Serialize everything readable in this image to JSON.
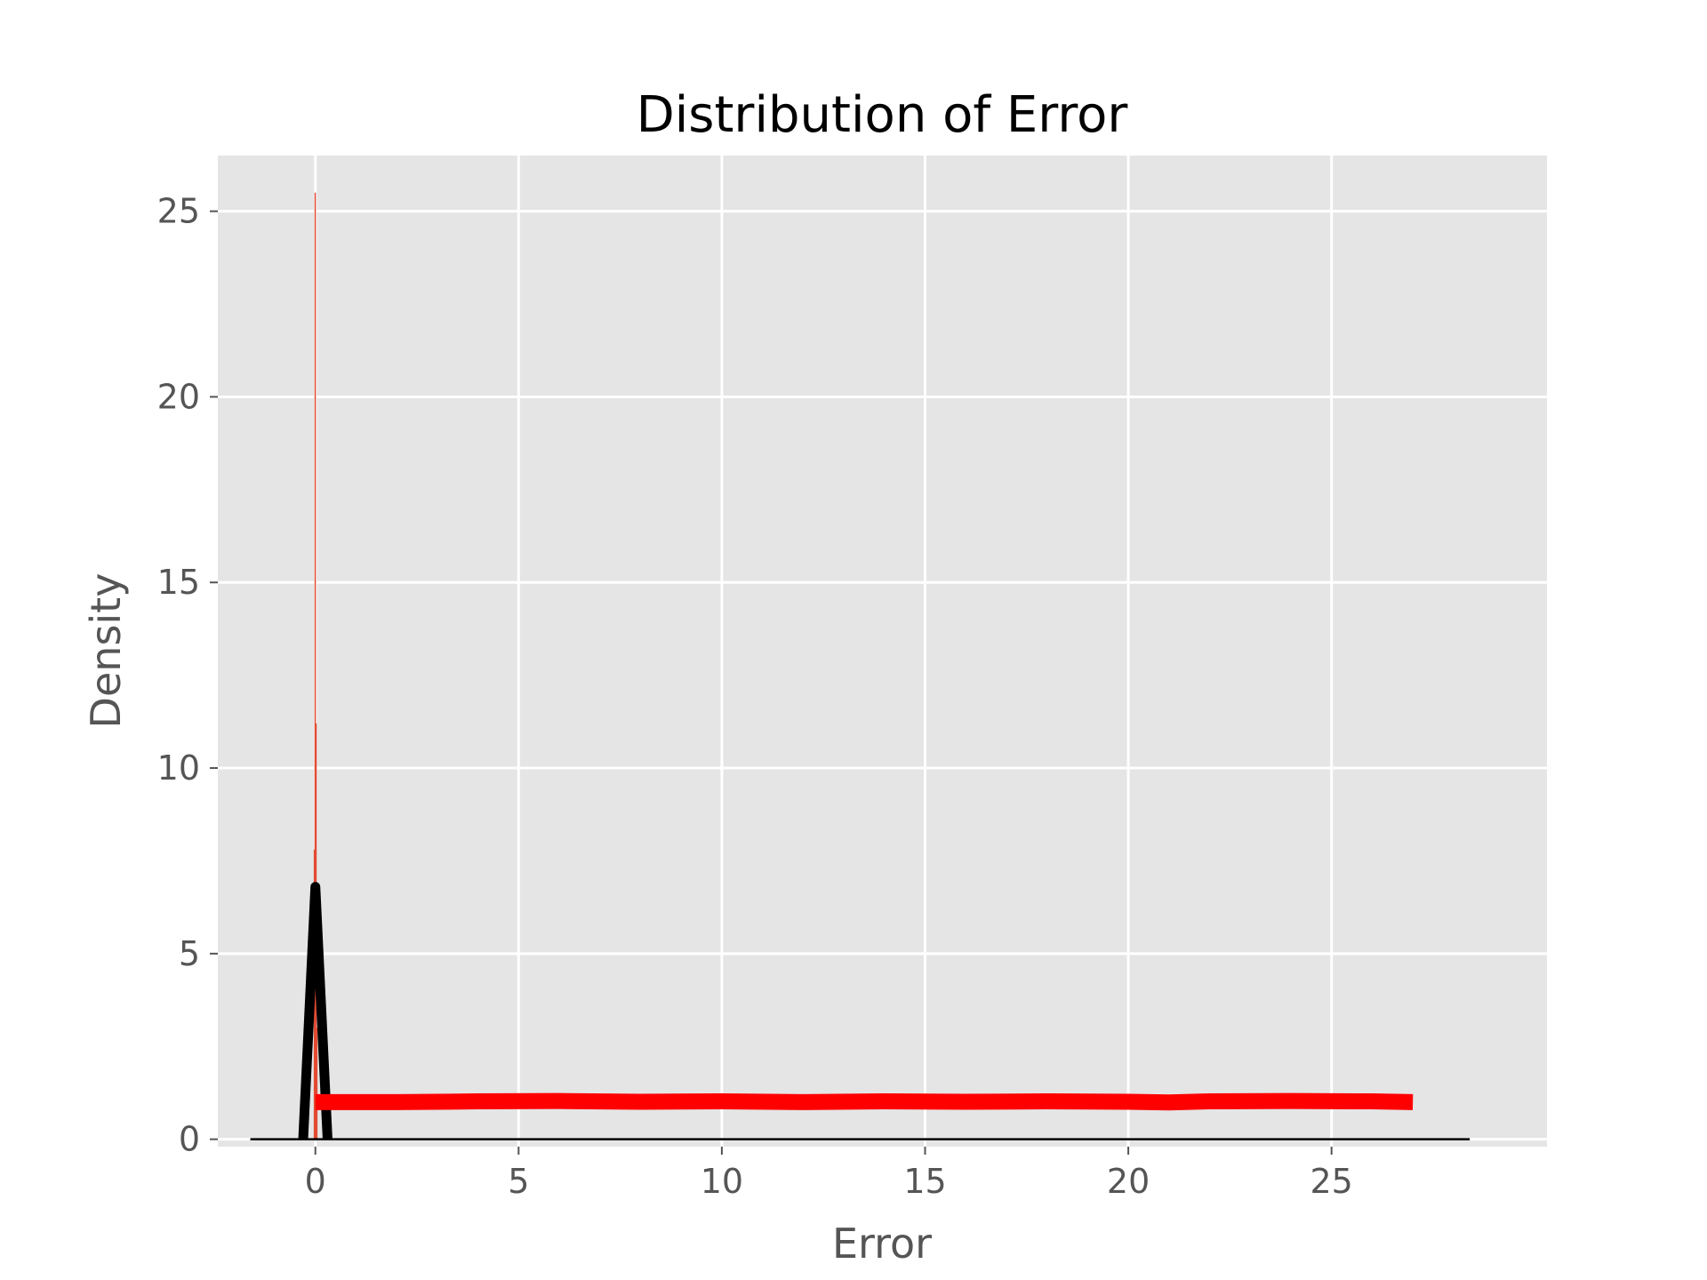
{
  "chart_data": {
    "type": "histogram",
    "title": "Distribution of Error",
    "xlabel": "Error",
    "ylabel": "Density",
    "xlim": [
      -2.4,
      30.3
    ],
    "ylim": [
      -0.2,
      26.5
    ],
    "xticks": [
      0,
      5,
      10,
      15,
      20,
      25
    ],
    "yticks": [
      0,
      5,
      10,
      15,
      20,
      25
    ],
    "grid": true,
    "background_color": "#e5e5e5",
    "grid_color": "#ffffff",
    "histogram": {
      "color": "#e24a33",
      "bars": [
        {
          "x": -0.04,
          "width": 0.015,
          "value": 7.8
        },
        {
          "x": -0.02,
          "width": 0.015,
          "value": 25.5
        },
        {
          "x": 0.0,
          "width": 0.015,
          "value": 11.2
        },
        {
          "x": 0.02,
          "width": 0.015,
          "value": 3.0
        }
      ]
    },
    "series": [
      {
        "color": "#000000",
        "style": "thick-line",
        "x": [
          -0.3,
          0.0,
          0.3
        ],
        "y": [
          0,
          6.8,
          0
        ]
      },
      {
        "color": "#ff0000",
        "style": "thick-band",
        "x": [
          0,
          2,
          4,
          6,
          8,
          10,
          12,
          14,
          16,
          18,
          20,
          21,
          22,
          24,
          26,
          27
        ],
        "y": [
          1.0,
          1.0,
          1.02,
          1.03,
          1.01,
          1.02,
          1.0,
          1.02,
          1.01,
          1.02,
          1.01,
          0.99,
          1.02,
          1.03,
          1.02,
          1.0
        ]
      },
      {
        "color": "#000000",
        "style": "baseline",
        "x": [
          -1.6,
          28.4
        ],
        "y": [
          0,
          0
        ]
      }
    ]
  }
}
